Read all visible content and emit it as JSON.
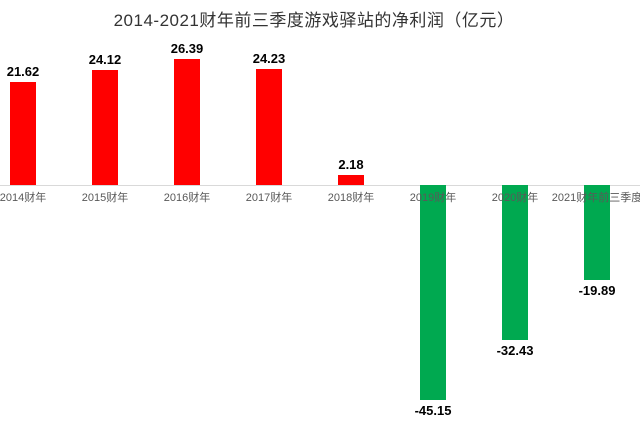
{
  "chart_data": {
    "type": "bar",
    "title": "2014-2021财年前三季度游戏驿站的净利润（亿元）",
    "categories": [
      "2014财年",
      "2015财年",
      "2016财年",
      "2017财年",
      "2018财年",
      "2019财年",
      "2020财年",
      "2021财年前三季度"
    ],
    "values": [
      21.62,
      24.12,
      26.39,
      24.23,
      2.18,
      -45.15,
      -32.43,
      -19.89
    ],
    "value_labels": [
      "21.62",
      "24.12",
      "26.39",
      "24.23",
      "2.18",
      "-45.15",
      "-32.43",
      "-19.89"
    ],
    "xlabel": "",
    "ylabel": "",
    "ylim": [
      -50,
      30
    ],
    "grid": "off",
    "legend": "none",
    "colors": {
      "positive_bar": "#ff0000",
      "negative_bar": "#00a950",
      "axis_line": "#d9d9d9",
      "value_label": "#000000",
      "category_label": "#595959",
      "title_text": "#333333"
    }
  }
}
